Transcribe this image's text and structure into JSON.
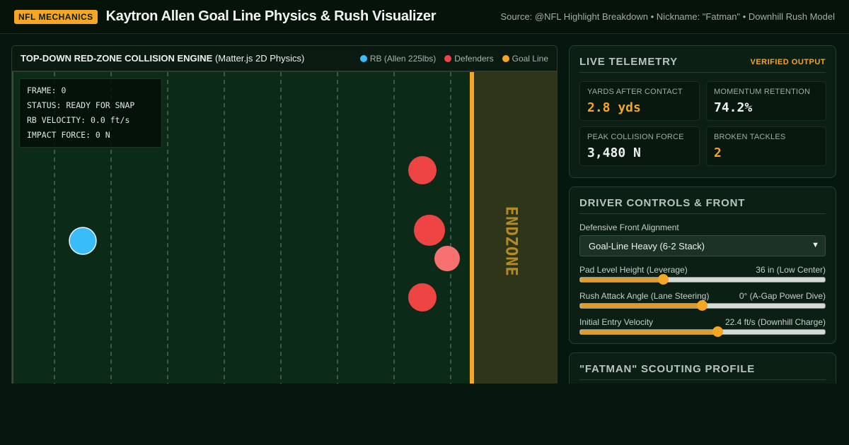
{
  "header": {
    "badge": "NFL MECHANICS",
    "title": "Kaytron Allen Goal Line Physics & Rush Visualizer",
    "source": "Source: @NFL Highlight Breakdown • Nickname: \"Fatman\" • Downhill Rush Model"
  },
  "sim": {
    "title_bold": "TOP-DOWN RED-ZONE COLLISION ENGINE",
    "title_thin": "(Matter.js 2D Physics)",
    "legend": [
      {
        "label": "RB (Allen 225lbs)",
        "color": "#38bdf8"
      },
      {
        "label": "Defenders",
        "color": "#ef4444"
      },
      {
        "label": "Goal Line",
        "color": "#f5a623"
      }
    ],
    "hud": {
      "frame": "FRAME: 0",
      "status": "STATUS: READY FOR SNAP",
      "velocity": "RB VELOCITY: 0.0 ft/s",
      "impact": "IMPACT FORCE: 0 N"
    },
    "endzone_label": "ENDZONE"
  },
  "telemetry": {
    "title": "LIVE TELEMETRY",
    "verified": "VERIFIED OUTPUT",
    "metrics": [
      {
        "label": "YARDS AFTER CONTACT",
        "value": "2.8 yds"
      },
      {
        "label": "MOMENTUM RETENTION",
        "value": "74.2%"
      },
      {
        "label": "PEAK COLLISION FORCE",
        "value": "3,480 N"
      },
      {
        "label": "BROKEN TACKLES",
        "value": "2"
      }
    ]
  },
  "controls": {
    "title": "DRIVER CONTROLS & FRONT",
    "front_label": "Defensive Front Alignment",
    "front_value": "Goal-Line Heavy (6-2 Stack)",
    "sliders": [
      {
        "label": "Pad Level Height (Leverage)",
        "value": "36 in (Low Center)",
        "fraction": 0.34
      },
      {
        "label": "Rush Attack Angle (Lane Steering)",
        "value": "0° (A-Gap Power Dive)",
        "fraction": 0.5
      },
      {
        "label": "Initial Entry Velocity",
        "value": "22.4 ft/s (Downhill Charge)",
        "fraction": 0.565
      }
    ]
  },
  "scouting": {
    "title": "\"FATMAN\" SCOUTING PROFILE"
  },
  "colors": {
    "accent": "#f5a623",
    "rb": "#38bdf8",
    "defender": "#ef4444",
    "field": "#0b2a18",
    "endzone": "#2f3519"
  }
}
